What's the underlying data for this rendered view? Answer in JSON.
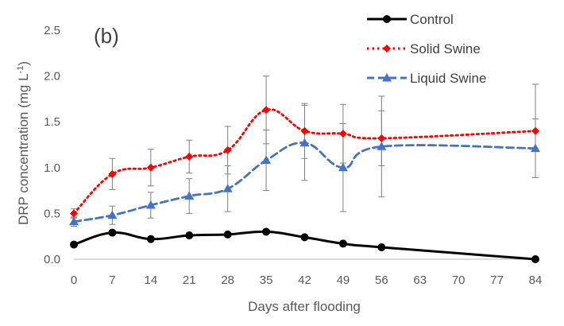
{
  "chart_data": {
    "type": "line",
    "panel_label": "(b)",
    "xlabel": "Days after flooding",
    "ylabel": "DRP concentration (mg L",
    "ylabel_superscript": "-1",
    "ylabel_suffix": ")",
    "x_ticks": [
      "0",
      "7",
      "14",
      "21",
      "28",
      "35",
      "42",
      "49",
      "56",
      "63",
      "70",
      "77",
      "84"
    ],
    "y_ticks": [
      "0.0",
      "0.5",
      "1.0",
      "1.5",
      "2.0",
      "2.5"
    ],
    "xlim": [
      0,
      84
    ],
    "ylim": [
      0,
      2.5
    ],
    "grid": false,
    "legend_position": "top-right",
    "series": [
      {
        "name": "Control",
        "color": "#000000",
        "line_style": "solid",
        "marker": "circle",
        "x": [
          0,
          7,
          14,
          21,
          28,
          35,
          42,
          49,
          56,
          84
        ],
        "y": [
          0.16,
          0.29,
          0.22,
          0.26,
          0.27,
          0.3,
          0.24,
          0.17,
          0.13,
          0.0
        ],
        "err": [
          0,
          0,
          0,
          0,
          0,
          0,
          0,
          0,
          0,
          0
        ]
      },
      {
        "name": "Solid Swine",
        "color": "#ff0000",
        "line_style": "dotted",
        "marker": "diamond",
        "x": [
          0,
          7,
          14,
          21,
          28,
          35,
          42,
          49,
          56,
          84
        ],
        "y": [
          0.5,
          0.93,
          1.0,
          1.12,
          1.19,
          1.63,
          1.4,
          1.37,
          1.32,
          1.4
        ],
        "err": [
          0.05,
          0.17,
          0.2,
          0.18,
          0.26,
          0.37,
          0.3,
          0.32,
          0.3,
          0.51
        ]
      },
      {
        "name": "Liquid Swine",
        "color": "#4472c4",
        "line_style": "dashed",
        "marker": "triangle",
        "x": [
          0,
          7,
          14,
          21,
          28,
          35,
          42,
          49,
          56,
          84
        ],
        "y": [
          0.41,
          0.48,
          0.59,
          0.69,
          0.77,
          1.08,
          1.27,
          1.0,
          1.23,
          1.21
        ],
        "err": [
          0.05,
          0.1,
          0.14,
          0.19,
          0.25,
          0.33,
          0.41,
          0.48,
          0.55,
          0.32
        ]
      }
    ]
  }
}
